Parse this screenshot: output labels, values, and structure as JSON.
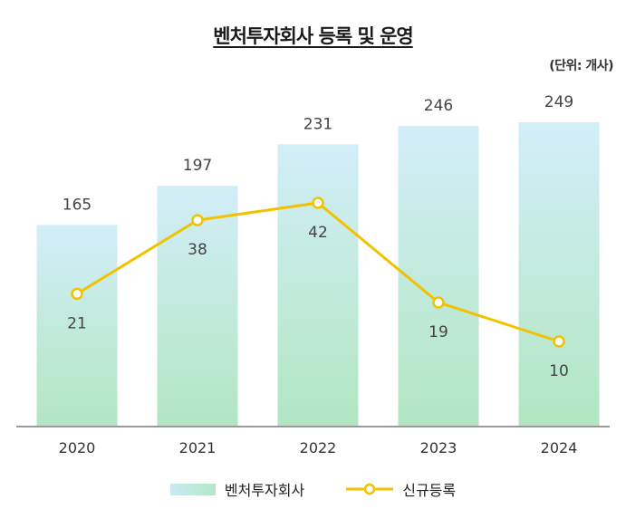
{
  "title": "벤처투자회사 등록 및 운영",
  "unit_label": "(단위: 개사)",
  "legend": {
    "bar_label": "벤처투자회사",
    "line_label": "신규등록"
  },
  "colors": {
    "bar_top": "#d2eef8",
    "bar_bottom": "#b2e6c2",
    "line": "#f2c100",
    "baseline": "#9a9a9a",
    "label_text": "#444444"
  },
  "chart_data": {
    "type": "bar",
    "categories": [
      "2020",
      "2021",
      "2022",
      "2023",
      "2024"
    ],
    "series": [
      {
        "name": "벤처투자회사",
        "type": "bar",
        "values": [
          165,
          197,
          231,
          246,
          249
        ]
      },
      {
        "name": "신규등록",
        "type": "line",
        "values": [
          21,
          38,
          42,
          19,
          10
        ]
      }
    ],
    "title": "벤처투자회사 등록 및 운영",
    "xlabel": "",
    "ylabel": "",
    "grid": false,
    "legend_position": "bottom"
  }
}
